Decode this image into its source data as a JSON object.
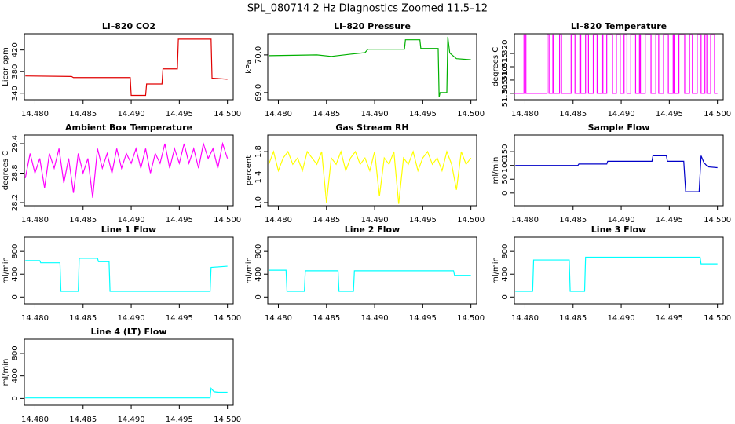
{
  "title": "SPL_080714  2 Hz Diagnostics Zoomed 11.5–12",
  "chart_data": [
    {
      "type": "line",
      "title": "Li–820 CO2",
      "ylabel": "Licor ppm",
      "color": "#e00000",
      "x": [
        14.479,
        14.4838,
        14.484,
        14.4899,
        14.49,
        14.4915,
        14.4916,
        14.4932,
        14.4933,
        14.4948,
        14.4949,
        14.4983,
        14.4984,
        14.5
      ],
      "values": [
        372,
        371,
        369,
        369,
        336,
        336,
        357,
        357,
        385,
        385,
        440,
        440,
        368,
        366
      ],
      "xlim": [
        14.4789,
        14.5006
      ],
      "xticks": [
        {
          "value": 14.48,
          "label": "14.480"
        },
        14.485,
        {
          "value": 14.49,
          "label": "14.490"
        },
        14.495,
        {
          "value": 14.5,
          "label": "14.500"
        }
      ],
      "ylim": [
        328,
        450
      ],
      "yticks": [
        340,
        380,
        420
      ]
    },
    {
      "type": "line",
      "title": "Li–820 Pressure",
      "ylabel": "kPa",
      "color": "#00b000",
      "x": [
        14.479,
        14.484,
        14.4855,
        14.4875,
        14.489,
        14.4893,
        14.4931,
        14.4932,
        14.4947,
        14.4948,
        14.4966,
        14.4967,
        14.4968,
        14.4975,
        14.4976,
        14.4978,
        14.4985,
        14.5
      ],
      "values": [
        69.98,
        70.0,
        69.96,
        70.02,
        70.06,
        70.15,
        70.15,
        70.4,
        70.4,
        70.17,
        70.17,
        68.88,
        69.0,
        69.0,
        70.48,
        70.05,
        69.9,
        69.87
      ],
      "xlim": [
        14.4789,
        14.5006
      ],
      "xticks": [
        {
          "value": 14.48,
          "label": "14.480"
        },
        14.485,
        {
          "value": 14.49,
          "label": "14.490"
        },
        14.495,
        {
          "value": 14.5,
          "label": "14.500"
        }
      ],
      "ylim": [
        68.81,
        70.56
      ],
      "yticks": [
        {
          "value": 69,
          "label": "69.0"
        },
        {
          "value": 70,
          "label": "70.0"
        }
      ]
    },
    {
      "type": "line",
      "title": "Li–820 Temperature",
      "ylabel": "degrees C",
      "color": "#ff00ff",
      "x": [
        14.4789,
        14.4799,
        14.4799,
        14.4801,
        14.4801,
        14.4823,
        14.4823,
        14.4825,
        14.4825,
        14.4829,
        14.4829,
        14.483,
        14.483,
        14.4836,
        14.4836,
        14.4838,
        14.4838,
        14.4848,
        14.4848,
        14.4852,
        14.4852,
        14.4857,
        14.4857,
        14.4858,
        14.4858,
        14.4863,
        14.4863,
        14.4866,
        14.4866,
        14.4871,
        14.4871,
        14.4875,
        14.4875,
        14.488,
        14.488,
        14.4881,
        14.4881,
        14.4885,
        14.4885,
        14.4891,
        14.4891,
        14.4895,
        14.4895,
        14.4899,
        14.4899,
        14.4903,
        14.4903,
        14.4906,
        14.4906,
        14.491,
        14.491,
        14.4915,
        14.4915,
        14.4919,
        14.4919,
        14.492,
        14.492,
        14.4925,
        14.4925,
        14.4931,
        14.4931,
        14.4936,
        14.4936,
        14.4939,
        14.4939,
        14.4944,
        14.4944,
        14.4949,
        14.4949,
        14.4954,
        14.4954,
        14.4955,
        14.4955,
        14.496,
        14.496,
        14.4966,
        14.4966,
        14.4971,
        14.4971,
        14.4974,
        14.4974,
        14.4979,
        14.4979,
        14.4983,
        14.4983,
        14.4987,
        14.4987,
        14.4989,
        14.4989,
        14.4993,
        14.4993,
        14.4997,
        14.4997,
        14.5
      ],
      "values": [
        51.305,
        51.305,
        51.327,
        51.327,
        51.305,
        51.305,
        51.327,
        51.327,
        51.305,
        51.305,
        51.327,
        51.327,
        51.305,
        51.305,
        51.327,
        51.327,
        51.305,
        51.305,
        51.327,
        51.327,
        51.305,
        51.305,
        51.327,
        51.327,
        51.305,
        51.305,
        51.327,
        51.327,
        51.305,
        51.305,
        51.327,
        51.327,
        51.305,
        51.305,
        51.327,
        51.327,
        51.305,
        51.305,
        51.327,
        51.327,
        51.305,
        51.305,
        51.327,
        51.327,
        51.305,
        51.305,
        51.327,
        51.327,
        51.305,
        51.305,
        51.327,
        51.327,
        51.305,
        51.305,
        51.327,
        51.327,
        51.305,
        51.305,
        51.327,
        51.327,
        51.305,
        51.305,
        51.327,
        51.327,
        51.305,
        51.305,
        51.327,
        51.327,
        51.305,
        51.305,
        51.327,
        51.327,
        51.305,
        51.305,
        51.327,
        51.327,
        51.305,
        51.305,
        51.327,
        51.327,
        51.305,
        51.305,
        51.327,
        51.327,
        51.305,
        51.305,
        51.327,
        51.327,
        51.305,
        51.305,
        51.327,
        51.327,
        51.305,
        51.305
      ],
      "xlim": [
        14.4789,
        14.5006
      ],
      "xticks": [
        {
          "value": 14.48,
          "label": "14.480"
        },
        14.485,
        {
          "value": 14.49,
          "label": "14.490"
        },
        14.495,
        {
          "value": 14.5,
          "label": "14.500"
        }
      ],
      "ylim": [
        51.3026,
        51.3274
      ],
      "yticks": [
        51.305,
        {
          "value": 51.31,
          "label": "51.310"
        },
        51.315,
        {
          "value": 51.32,
          "label": "51.320"
        }
      ]
    },
    {
      "type": "line",
      "title": "Ambient Box Temperature",
      "ylabel": "degrees C",
      "color": "#ff00ff",
      "x": [
        14.479,
        14.4795,
        14.48,
        14.4805,
        14.481,
        14.4815,
        14.482,
        14.4825,
        14.483,
        14.4835,
        14.484,
        14.4845,
        14.485,
        14.4855,
        14.486,
        14.4865,
        14.487,
        14.4875,
        14.488,
        14.4885,
        14.489,
        14.4895,
        14.49,
        14.4905,
        14.491,
        14.4915,
        14.492,
        14.4925,
        14.493,
        14.4935,
        14.494,
        14.4945,
        14.495,
        14.4955,
        14.496,
        14.4965,
        14.497,
        14.4975,
        14.498,
        14.4985,
        14.499,
        14.4995,
        14.5
      ],
      "values": [
        28.7,
        29.2,
        28.8,
        29.1,
        28.5,
        29.2,
        28.9,
        29.3,
        28.6,
        29.1,
        28.4,
        29.2,
        28.8,
        29.1,
        28.3,
        29.3,
        28.9,
        29.2,
        28.8,
        29.3,
        28.9,
        29.2,
        29.0,
        29.3,
        28.9,
        29.3,
        28.8,
        29.2,
        29.0,
        29.4,
        28.9,
        29.3,
        29.0,
        29.4,
        29.0,
        29.3,
        28.9,
        29.4,
        29.1,
        29.3,
        28.9,
        29.4,
        29.1
      ],
      "xlim": [
        14.4789,
        14.5006
      ],
      "xticks": [
        {
          "value": 14.48,
          "label": "14.480"
        },
        14.485,
        {
          "value": 14.49,
          "label": "14.490"
        },
        14.495,
        {
          "value": 14.5,
          "label": "14.500"
        }
      ],
      "ylim": [
        28.136,
        29.576
      ],
      "yticks": [
        28.2,
        28.8,
        29.4
      ]
    },
    {
      "type": "line",
      "title": "Gas Stream RH",
      "ylabel": "percent",
      "color": "#ffff00",
      "x": [
        14.479,
        14.4795,
        14.48,
        14.4805,
        14.481,
        14.4815,
        14.482,
        14.4825,
        14.483,
        14.4835,
        14.484,
        14.4845,
        14.485,
        14.4855,
        14.486,
        14.4865,
        14.487,
        14.4875,
        14.488,
        14.4885,
        14.489,
        14.4895,
        14.49,
        14.4905,
        14.491,
        14.4915,
        14.492,
        14.4925,
        14.493,
        14.4935,
        14.494,
        14.4945,
        14.495,
        14.4955,
        14.496,
        14.4965,
        14.497,
        14.4975,
        14.498,
        14.4985,
        14.499,
        14.4995,
        14.5
      ],
      "values": [
        1.6,
        1.8,
        1.5,
        1.7,
        1.8,
        1.6,
        1.7,
        1.5,
        1.8,
        1.7,
        1.6,
        1.8,
        1.0,
        1.7,
        1.6,
        1.8,
        1.5,
        1.7,
        1.8,
        1.6,
        1.7,
        1.5,
        1.8,
        1.1,
        1.7,
        1.6,
        1.8,
        0.98,
        1.7,
        1.6,
        1.8,
        1.5,
        1.7,
        1.8,
        1.6,
        1.7,
        1.5,
        1.8,
        1.6,
        1.2,
        1.8,
        1.6,
        1.7
      ],
      "xlim": [
        14.4789,
        14.5006
      ],
      "xticks": [
        {
          "value": 14.48,
          "label": "14.480"
        },
        14.485,
        {
          "value": 14.49,
          "label": "14.490"
        },
        14.495,
        {
          "value": 14.5,
          "label": "14.500"
        }
      ],
      "ylim": [
        0.95,
        2.06
      ],
      "yticks": [
        {
          "value": 1,
          "label": "1.0"
        },
        1.4,
        1.8
      ]
    },
    {
      "type": "line",
      "title": "Sample Flow",
      "ylabel": "ml/min",
      "color": "#0000c8",
      "x": [
        14.479,
        14.4855,
        14.4856,
        14.4885,
        14.4886,
        14.4932,
        14.4933,
        14.4947,
        14.4948,
        14.4965,
        14.4967,
        14.4981,
        14.4983,
        14.4986,
        14.499,
        14.5
      ],
      "values": [
        100,
        100,
        105,
        105,
        115,
        115,
        135,
        135,
        115,
        115,
        5,
        5,
        135,
        110,
        95,
        92
      ],
      "xlim": [
        14.4789,
        14.5006
      ],
      "xticks": [
        {
          "value": 14.48,
          "label": "14.480"
        },
        14.485,
        {
          "value": 14.49,
          "label": "14.490"
        },
        14.495,
        {
          "value": 14.5,
          "label": "14.500"
        }
      ],
      "ylim": [
        -46,
        210
      ],
      "yticks": [
        0,
        50,
        100,
        150
      ]
    },
    {
      "type": "line",
      "title": "Line 1 Flow",
      "ylabel": "ml/min",
      "color": "#00ffff",
      "x": [
        14.479,
        14.4805,
        14.4806,
        14.4826,
        14.4827,
        14.4845,
        14.4846,
        14.4865,
        14.4866,
        14.4877,
        14.4878,
        14.4982,
        14.4983,
        14.5
      ],
      "values": [
        640,
        640,
        600,
        600,
        100,
        100,
        680,
        680,
        620,
        620,
        100,
        100,
        520,
        540
      ],
      "xlim": [
        14.4789,
        14.5006
      ],
      "xticks": [
        {
          "value": 14.48,
          "label": "14.480"
        },
        14.485,
        {
          "value": 14.49,
          "label": "14.490"
        },
        14.495,
        {
          "value": 14.5,
          "label": "14.500"
        }
      ],
      "ylim": [
        -120,
        1050
      ],
      "yticks": [
        0,
        400,
        800
      ]
    },
    {
      "type": "line",
      "title": "Line 2 Flow",
      "ylabel": "ml/min",
      "color": "#00ffff",
      "x": [
        14.479,
        14.4808,
        14.4809,
        14.4827,
        14.4828,
        14.4862,
        14.4863,
        14.4878,
        14.4879,
        14.4982,
        14.4983,
        14.5
      ],
      "values": [
        470,
        470,
        100,
        100,
        460,
        460,
        100,
        100,
        460,
        460,
        380,
        380
      ],
      "xlim": [
        14.4789,
        14.5006
      ],
      "xticks": [
        {
          "value": 14.48,
          "label": "14.480"
        },
        14.485,
        {
          "value": 14.49,
          "label": "14.490"
        },
        14.495,
        {
          "value": 14.5,
          "label": "14.500"
        }
      ],
      "ylim": [
        -120,
        1050
      ],
      "yticks": [
        0,
        400,
        800
      ]
    },
    {
      "type": "line",
      "title": "Line 3 Flow",
      "ylabel": "ml/min",
      "color": "#00ffff",
      "x": [
        14.479,
        14.4808,
        14.4809,
        14.4846,
        14.4847,
        14.4862,
        14.4863,
        14.4982,
        14.4983,
        14.5
      ],
      "values": [
        100,
        100,
        650,
        650,
        100,
        100,
        700,
        700,
        580,
        580
      ],
      "xlim": [
        14.4789,
        14.5006
      ],
      "xticks": [
        {
          "value": 14.48,
          "label": "14.480"
        },
        14.485,
        {
          "value": 14.49,
          "label": "14.490"
        },
        14.495,
        {
          "value": 14.5,
          "label": "14.500"
        }
      ],
      "ylim": [
        -120,
        1050
      ],
      "yticks": [
        0,
        400,
        800
      ]
    },
    {
      "type": "line",
      "title": "Line 4 (LT) Flow",
      "ylabel": "ml/min",
      "color": "#00ffff",
      "x": [
        14.479,
        14.4982,
        14.4983,
        14.4986,
        14.499,
        14.5
      ],
      "values": [
        10,
        10,
        180,
        120,
        110,
        110
      ],
      "xlim": [
        14.4789,
        14.5006
      ],
      "xticks": [
        {
          "value": 14.48,
          "label": "14.480"
        },
        14.485,
        {
          "value": 14.49,
          "label": "14.490"
        },
        14.495,
        {
          "value": 14.5,
          "label": "14.500"
        }
      ],
      "ylim": [
        -120,
        1050
      ],
      "yticks": [
        0,
        400,
        800
      ]
    }
  ]
}
